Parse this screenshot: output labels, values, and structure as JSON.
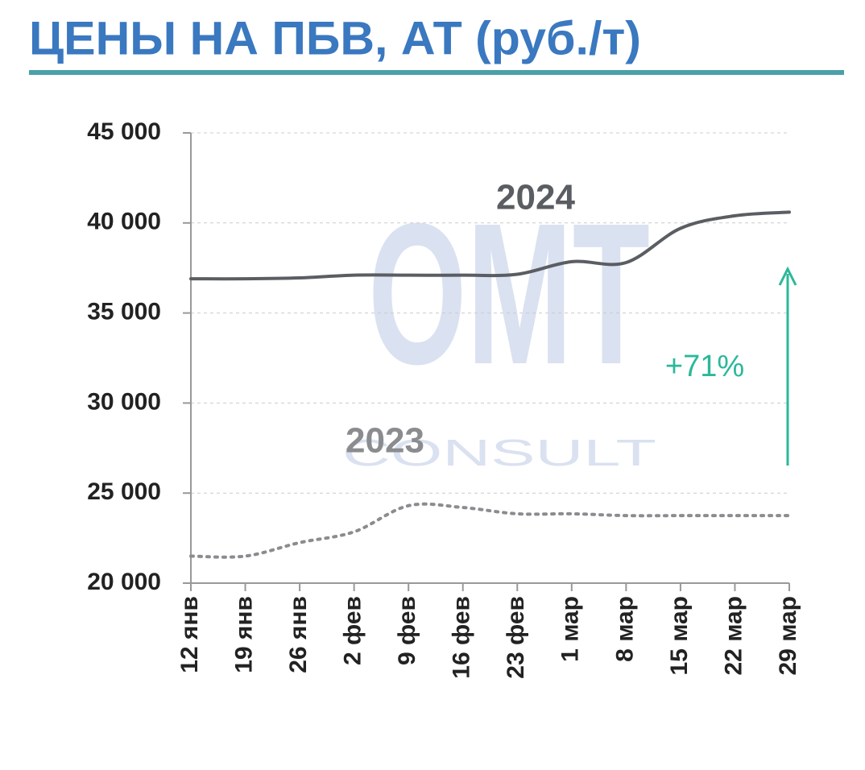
{
  "chart_data": {
    "type": "line",
    "title": "ЦЕНЫ НА ПБВ, АТ (руб./т)",
    "categories": [
      "12 янв",
      "19 янв",
      "26 янв",
      "2 фев",
      "9 фев",
      "16 фев",
      "23 фев",
      "1 мар",
      "8 мар",
      "15 мар",
      "22 мар",
      "29 мар"
    ],
    "series": [
      {
        "name": "2024",
        "color": "#5a5d62",
        "style": "solid",
        "values": [
          36900,
          36900,
          36950,
          37100,
          37100,
          37100,
          37150,
          37850,
          37800,
          39700,
          40400,
          40600
        ]
      },
      {
        "name": "2023",
        "color": "#8a8c8f",
        "style": "dotted",
        "values": [
          21500,
          21500,
          22250,
          22850,
          24300,
          24200,
          23850,
          23850,
          23750,
          23750,
          23750,
          23750
        ]
      }
    ],
    "ylim": [
      20000,
      45000
    ],
    "yticks": [
      {
        "value": 20000,
        "label": "20 000"
      },
      {
        "value": 25000,
        "label": "25 000"
      },
      {
        "value": 30000,
        "label": "30 000"
      },
      {
        "value": 35000,
        "label": "35 000"
      },
      {
        "value": 40000,
        "label": "40 000"
      },
      {
        "value": 45000,
        "label": "45 000"
      }
    ],
    "grid": true,
    "annotation": "+71%",
    "watermark": [
      "ОМТ",
      "CONSULT"
    ]
  }
}
